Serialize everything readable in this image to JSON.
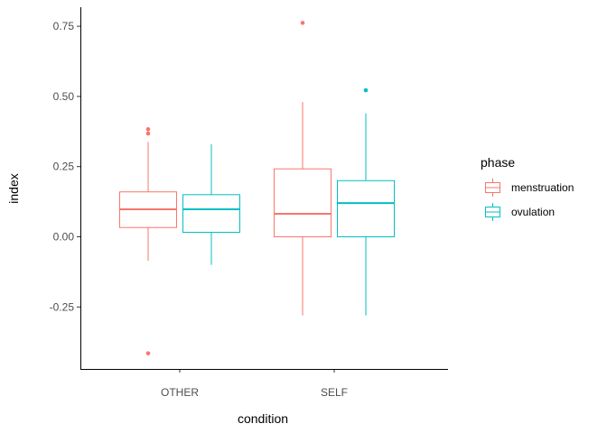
{
  "chart_data": {
    "type": "boxplot",
    "xlabel": "condition",
    "ylabel": "index",
    "categories": [
      "OTHER",
      "SELF"
    ],
    "ylim": [
      -0.47,
      0.82
    ],
    "yticks": [
      {
        "value": 0.75,
        "label": "0.75"
      },
      {
        "value": 0.5,
        "label": "0.50"
      },
      {
        "value": 0.25,
        "label": "0.25"
      },
      {
        "value": 0.0,
        "label": "0.00"
      },
      {
        "value": -0.25,
        "label": "-0.25"
      }
    ],
    "grid": false,
    "legend": {
      "title": "phase",
      "position": "right"
    },
    "series": [
      {
        "name": "menstruation",
        "color": "#F8766D",
        "boxes": [
          {
            "category": "OTHER",
            "whisker_low": -0.085,
            "q1": 0.033,
            "median": 0.098,
            "q3": 0.16,
            "whisker_high": 0.338,
            "outliers": [
              0.383,
              0.368,
              -0.415
            ]
          },
          {
            "category": "SELF",
            "whisker_low": -0.28,
            "q1": 0.0,
            "median": 0.082,
            "q3": 0.242,
            "whisker_high": 0.48,
            "outliers": [
              0.762
            ]
          }
        ]
      },
      {
        "name": "ovulation",
        "color": "#00BFC4",
        "boxes": [
          {
            "category": "OTHER",
            "whisker_low": -0.1,
            "q1": 0.016,
            "median": 0.098,
            "q3": 0.15,
            "whisker_high": 0.33,
            "outliers": []
          },
          {
            "category": "SELF",
            "whisker_low": -0.28,
            "q1": 0.0,
            "median": 0.12,
            "q3": 0.2,
            "whisker_high": 0.44,
            "outliers": [
              0.522
            ]
          }
        ]
      }
    ]
  }
}
